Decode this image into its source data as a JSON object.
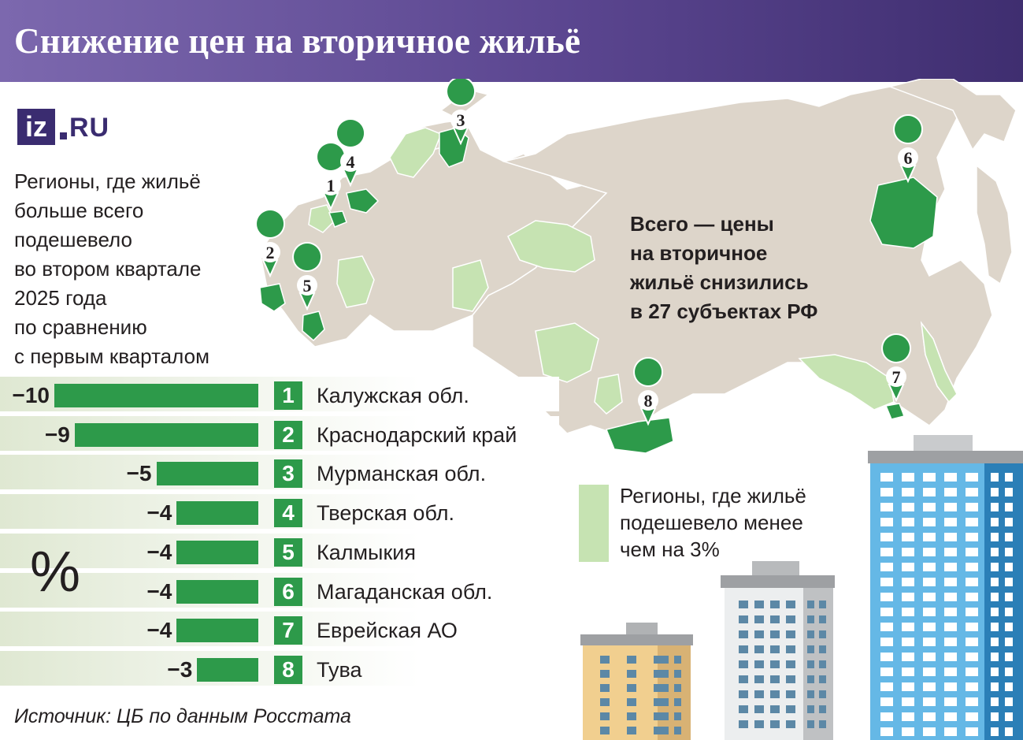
{
  "title": "Снижение цен на вторичное жильё",
  "logo": {
    "brand": "iz",
    "domain": "RU"
  },
  "subtitle_lines": [
    "Регионы, где жильё",
    "больше всего",
    "подешевело",
    "во втором квартале",
    "2025 года",
    "по сравнению",
    "с первым кварталом"
  ],
  "map_note_lines": [
    "Всего — цены",
    "на вторичное",
    "жильё снизились",
    "в 27 субъектах РФ"
  ],
  "legend_lines": [
    "Регионы, где жильё",
    "подешевело менее",
    "чем на 3%"
  ],
  "unit_label": "%",
  "source": "Источник: ЦБ по данным Росстата",
  "colors": {
    "header_start": "#7c68ae",
    "header_end": "#3f2e70",
    "accent_green": "#2d9a4a",
    "light_green": "#c6e3b2",
    "map_gray": "#ddd5ca"
  },
  "chart_data": {
    "type": "bar",
    "orientation": "horizontal",
    "unit": "%",
    "categories": [
      "Калужская обл.",
      "Краснодарский край",
      "Мурманская обл.",
      "Тверская обл.",
      "Калмыкия",
      "Магаданская обл.",
      "Еврейская АО",
      "Тува"
    ],
    "ranks": [
      "1",
      "2",
      "3",
      "4",
      "5",
      "6",
      "7",
      "8"
    ],
    "values": [
      -10,
      -9,
      -5,
      -4,
      -4,
      -4,
      -4,
      -3
    ],
    "value_labels": [
      "−10",
      "−9",
      "−5",
      "−4",
      "−4",
      "−4",
      "−4",
      "−3"
    ],
    "xlim": [
      -10,
      0
    ]
  },
  "map_markers": [
    "1",
    "2",
    "3",
    "4",
    "5",
    "6",
    "7",
    "8"
  ]
}
